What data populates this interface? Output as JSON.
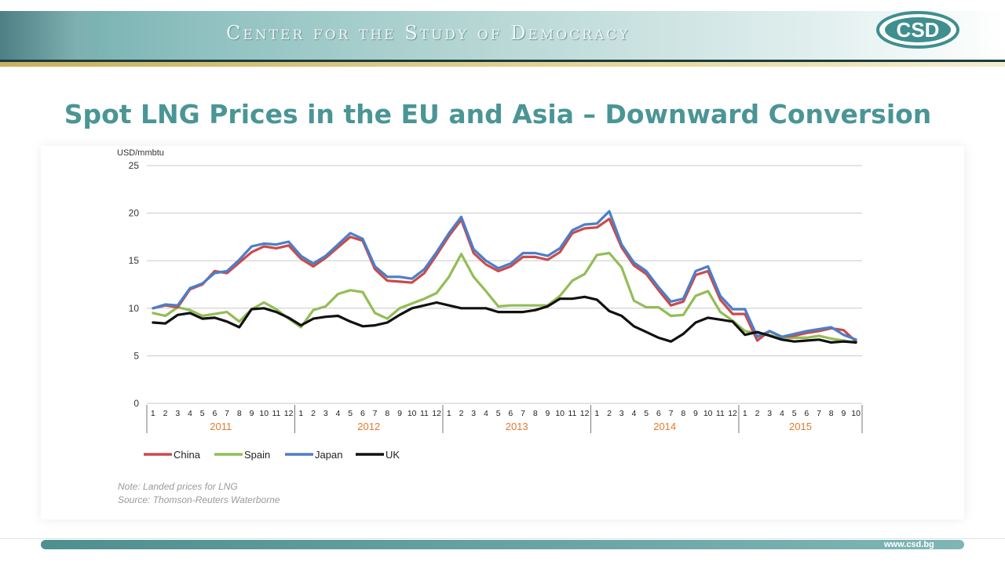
{
  "header": {
    "org_name": "Center for the Study of Democracy",
    "logo_text": "CSD",
    "url": "www.csd.bg"
  },
  "slide": {
    "title": "Spot LNG Prices in the EU and Asia – Downward Conversion"
  },
  "colors": {
    "accent": "#4a9596",
    "china": "#cc4a4a",
    "spain": "#93bd55",
    "japan": "#4a7fc9",
    "uk": "#111111",
    "year_label": "#e07b2e"
  },
  "chart_data": {
    "type": "line",
    "ylabel": "USD/mmbtu",
    "ylim": [
      0,
      25
    ],
    "yticks": [
      0,
      5,
      10,
      15,
      20,
      25
    ],
    "grid": true,
    "legend_position": "bottom-left",
    "years": [
      {
        "label": "2011",
        "months": 12
      },
      {
        "label": "2012",
        "months": 12
      },
      {
        "label": "2013",
        "months": 12
      },
      {
        "label": "2014",
        "months": 12
      },
      {
        "label": "2015",
        "months": 10
      }
    ],
    "series": [
      {
        "name": "China",
        "values": [
          10.0,
          10.3,
          10.1,
          12.0,
          12.5,
          13.9,
          13.7,
          14.8,
          15.9,
          16.5,
          16.3,
          16.6,
          15.2,
          14.4,
          15.3,
          16.4,
          17.5,
          17.1,
          14.1,
          12.9,
          12.8,
          12.7,
          13.7,
          15.6,
          17.6,
          19.3,
          15.8,
          14.6,
          13.9,
          14.4,
          15.4,
          15.4,
          15.1,
          15.9,
          17.9,
          18.4,
          18.5,
          19.4,
          16.4,
          14.5,
          13.6,
          11.9,
          10.3,
          10.7,
          13.5,
          13.9,
          10.9,
          9.4,
          9.4,
          6.6,
          7.6,
          7.0,
          7.1,
          7.4,
          7.6,
          7.9,
          7.7,
          6.5
        ]
      },
      {
        "name": "Spain",
        "values": [
          9.5,
          9.2,
          10.1,
          9.8,
          9.2,
          9.4,
          9.6,
          8.6,
          9.9,
          10.6,
          9.9,
          8.9,
          8.0,
          9.8,
          10.2,
          11.5,
          11.9,
          11.7,
          9.5,
          8.9,
          10.0,
          10.5,
          11.0,
          11.6,
          13.3,
          15.7,
          13.3,
          11.8,
          10.2,
          10.3,
          10.3,
          10.3,
          10.3,
          11.3,
          12.9,
          13.6,
          15.6,
          15.8,
          14.3,
          10.8,
          10.1,
          10.1,
          9.2,
          9.3,
          11.3,
          11.8,
          9.6,
          8.7,
          7.6,
          7.4,
          7.2,
          6.8,
          6.9,
          6.9,
          7.1,
          6.8,
          6.6,
          6.4
        ]
      },
      {
        "name": "Japan",
        "values": [
          10.0,
          10.4,
          10.3,
          12.1,
          12.6,
          13.7,
          13.9,
          15.1,
          16.5,
          16.8,
          16.7,
          17.0,
          15.5,
          14.7,
          15.5,
          16.7,
          17.9,
          17.3,
          14.4,
          13.3,
          13.3,
          13.1,
          14.1,
          15.9,
          17.9,
          19.6,
          16.2,
          15.0,
          14.2,
          14.7,
          15.8,
          15.8,
          15.5,
          16.3,
          18.2,
          18.8,
          18.9,
          20.2,
          16.7,
          14.8,
          13.9,
          12.2,
          10.7,
          11.0,
          13.9,
          14.4,
          11.3,
          9.9,
          9.9,
          7.0,
          7.6,
          7.0,
          7.3,
          7.6,
          7.8,
          8.0,
          7.2,
          6.7
        ]
      },
      {
        "name": "UK",
        "values": [
          8.5,
          8.4,
          9.3,
          9.5,
          8.9,
          9.0,
          8.6,
          8.0,
          9.9,
          10.0,
          9.6,
          9.0,
          8.2,
          8.9,
          9.1,
          9.2,
          8.6,
          8.1,
          8.2,
          8.5,
          9.3,
          10.0,
          10.3,
          10.6,
          10.3,
          10.0,
          10.0,
          10.0,
          9.6,
          9.6,
          9.6,
          9.8,
          10.2,
          11.0,
          11.0,
          11.2,
          10.9,
          9.7,
          9.2,
          8.1,
          7.5,
          6.9,
          6.5,
          7.3,
          8.5,
          9.0,
          8.8,
          8.6,
          7.2,
          7.5,
          7.1,
          6.7,
          6.5,
          6.6,
          6.7,
          6.4,
          6.5,
          6.4
        ]
      }
    ],
    "notes": [
      "Note: Landed prices for LNG",
      "Source: Thomson-Reuters Waterborne"
    ]
  }
}
